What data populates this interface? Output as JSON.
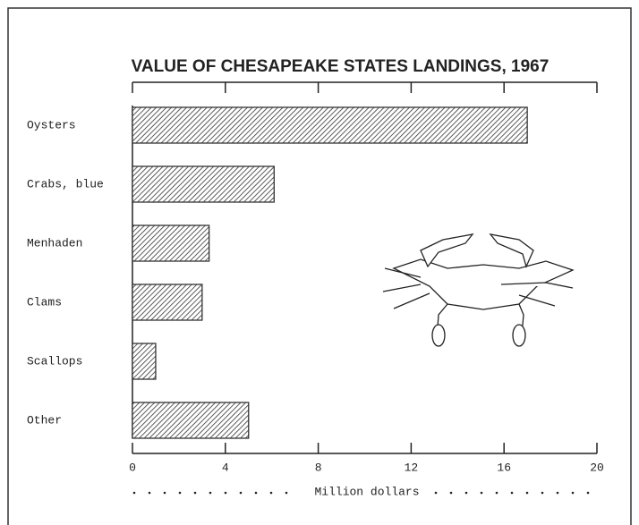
{
  "chart_data": {
    "type": "bar",
    "orientation": "horizontal",
    "title": "VALUE OF CHESAPEAKE STATES LANDINGS, 1967",
    "x_label": "Million dollars",
    "categories": [
      "Oysters",
      "Crabs, blue",
      "Menhaden",
      "Clams",
      "Scallops",
      "Other"
    ],
    "values": [
      17.0,
      6.1,
      3.3,
      3.0,
      1.0,
      5.0
    ],
    "color": "#333333",
    "xlim": [
      0,
      20
    ],
    "xticks": [
      0,
      4,
      8,
      12,
      16,
      20
    ]
  }
}
